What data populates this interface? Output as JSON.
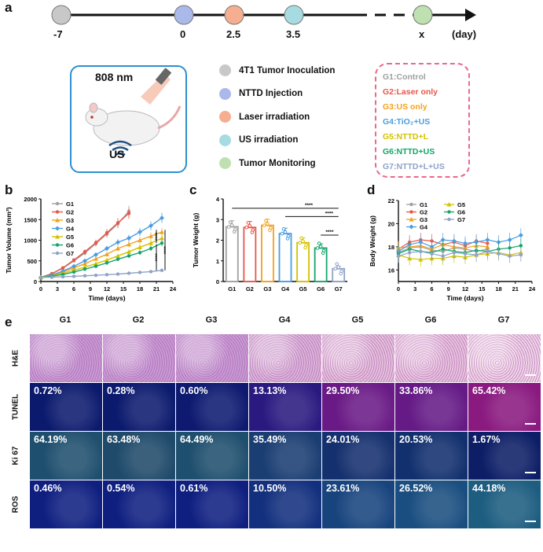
{
  "panel_labels": {
    "a": "a",
    "b": "b",
    "c": "c",
    "d": "d",
    "e": "e"
  },
  "timeline": {
    "points": [
      {
        "label": "-7",
        "color": "#c8c8c8"
      },
      {
        "label": "0",
        "color": "#aab8ea"
      },
      {
        "label": "2.5",
        "color": "#f5ae8f"
      },
      {
        "label": "3.5",
        "color": "#a6dbe2"
      },
      {
        "label": "x",
        "color": "#bfe0b0"
      }
    ],
    "unit": "(day)"
  },
  "schematic": {
    "laser": "808 nm",
    "us": "US"
  },
  "events": [
    {
      "label": "4T1 Tumor Inoculation",
      "color": "#c8c8c8"
    },
    {
      "label": "NTTD Injection",
      "color": "#aab8ea"
    },
    {
      "label": "Laser irradiation",
      "color": "#f5ae8f"
    },
    {
      "label": "US irradiation",
      "color": "#a6dbe2"
    },
    {
      "label": "Tumor Monitoring",
      "color": "#bfe0b0"
    }
  ],
  "groups": [
    {
      "label": "G1:Control",
      "color": "#a0a0a0"
    },
    {
      "label": "G2:Laser only",
      "color": "#e8564a"
    },
    {
      "label": "G3:US only",
      "color": "#f3a21f"
    },
    {
      "label": "G4:TiO₂+US",
      "color": "#4a9de0"
    },
    {
      "label": "G5:NTTD+L",
      "color": "#d4c200"
    },
    {
      "label": "G6:NTTD+US",
      "color": "#13a56b"
    },
    {
      "label": "G7:NTTD+L+US",
      "color": "#8fa3c8"
    }
  ],
  "chart_data": [
    {
      "type": "line",
      "panel": "b",
      "xlabel": "Time (days)",
      "ylabel": "Tumor Volume (mm³)",
      "xlim": [
        0,
        24
      ],
      "ylim": [
        0,
        2000
      ],
      "xticks": [
        "0",
        "3",
        "6",
        "9",
        "12",
        "15",
        "18",
        "21",
        "24"
      ],
      "yticks": [
        "0",
        "500",
        "1000",
        "1500",
        "2000"
      ],
      "significance": [
        "****",
        "****",
        "****"
      ],
      "series": [
        {
          "name": "G1",
          "color": "#a0a0a0",
          "x": [
            0,
            2,
            4,
            6,
            8,
            10,
            12,
            14,
            16
          ],
          "y": [
            100,
            190,
            320,
            500,
            690,
            920,
            1150,
            1400,
            1700
          ]
        },
        {
          "name": "G2",
          "color": "#e8564a",
          "x": [
            0,
            2,
            4,
            6,
            8,
            10,
            12,
            14,
            16
          ],
          "y": [
            100,
            190,
            330,
            520,
            720,
            940,
            1180,
            1420,
            1650
          ]
        },
        {
          "name": "G3",
          "color": "#f3a21f",
          "x": [
            0,
            2,
            4,
            6,
            8,
            10,
            12,
            14,
            16,
            18,
            20,
            22
          ],
          "y": [
            100,
            150,
            230,
            330,
            430,
            550,
            660,
            800,
            900,
            1000,
            1100,
            1200
          ]
        },
        {
          "name": "G4",
          "color": "#4a9de0",
          "x": [
            0,
            2,
            4,
            6,
            8,
            10,
            12,
            14,
            16,
            18,
            20,
            22
          ],
          "y": [
            100,
            160,
            250,
            370,
            500,
            650,
            800,
            950,
            1050,
            1200,
            1350,
            1540
          ]
        },
        {
          "name": "G5",
          "color": "#d4c200",
          "x": [
            0,
            2,
            4,
            6,
            8,
            10,
            12,
            14,
            16,
            18,
            20,
            22
          ],
          "y": [
            100,
            140,
            200,
            270,
            350,
            430,
            520,
            620,
            720,
            830,
            930,
            1050
          ]
        },
        {
          "name": "G6",
          "color": "#13a56b",
          "x": [
            0,
            2,
            4,
            6,
            8,
            10,
            12,
            14,
            16,
            18,
            20,
            22
          ],
          "y": [
            100,
            130,
            170,
            230,
            300,
            370,
            450,
            540,
            620,
            700,
            800,
            930
          ]
        },
        {
          "name": "G7",
          "color": "#8fa3c8",
          "x": [
            0,
            2,
            4,
            6,
            8,
            10,
            12,
            14,
            16,
            18,
            20,
            22
          ],
          "y": [
            100,
            105,
            115,
            125,
            140,
            150,
            165,
            180,
            200,
            220,
            240,
            270
          ]
        }
      ]
    },
    {
      "type": "bar",
      "panel": "c",
      "ylabel": "Tumor Weight (g)",
      "ylim": [
        0,
        4
      ],
      "yticks": [
        "0",
        "1",
        "2",
        "3",
        "4"
      ],
      "categories": [
        "G1",
        "G2",
        "G3",
        "G4",
        "G5",
        "G6",
        "G7"
      ],
      "values": [
        2.65,
        2.62,
        2.72,
        2.32,
        1.88,
        1.62,
        0.62
      ],
      "colors": [
        "#a0a0a0",
        "#e8564a",
        "#f3a21f",
        "#4a9de0",
        "#d4c200",
        "#13a56b",
        "#8fa3c8"
      ],
      "significance": [
        "****",
        "****",
        "****"
      ]
    },
    {
      "type": "line",
      "panel": "d",
      "xlabel": "Time (days)",
      "ylabel": "Body Weight (g)",
      "xlim": [
        0,
        24
      ],
      "ylim": [
        15,
        22
      ],
      "xticks": [
        "0",
        "3",
        "6",
        "9",
        "12",
        "15",
        "18",
        "21",
        "24"
      ],
      "yticks": [
        "16",
        "18",
        "20",
        "22"
      ],
      "series": [
        {
          "name": "G1",
          "color": "#a0a0a0",
          "x": [
            0,
            2,
            4,
            6,
            8,
            10,
            12,
            14,
            16
          ],
          "y": [
            17.5,
            17.9,
            18.0,
            17.7,
            17.6,
            17.9,
            17.8,
            17.6,
            17.8
          ]
        },
        {
          "name": "G2",
          "color": "#e8564a",
          "x": [
            0,
            2,
            4,
            6,
            8,
            10,
            12,
            14,
            16
          ],
          "y": [
            17.8,
            18.4,
            18.6,
            18.5,
            18.2,
            18.4,
            18.1,
            18.5,
            18.3
          ]
        },
        {
          "name": "G3",
          "color": "#f3a21f",
          "x": [
            0,
            2,
            4,
            6,
            8,
            10,
            12,
            14,
            16
          ],
          "y": [
            17.9,
            18.0,
            18.1,
            17.8,
            18.2,
            18.0,
            17.9,
            18.1,
            18.0
          ]
        },
        {
          "name": "G4",
          "color": "#4a9de0",
          "x": [
            0,
            2,
            4,
            6,
            8,
            10,
            12,
            14,
            16,
            18,
            20,
            22
          ],
          "y": [
            17.6,
            18.2,
            18.4,
            18.0,
            18.6,
            18.5,
            18.3,
            18.4,
            18.6,
            18.4,
            18.6,
            19.0
          ]
        },
        {
          "name": "G5",
          "color": "#d4c200",
          "x": [
            0,
            2,
            4,
            6,
            8,
            10,
            12,
            14,
            16,
            18,
            20,
            22
          ],
          "y": [
            17.3,
            17.0,
            16.9,
            17.0,
            17.0,
            17.2,
            17.1,
            17.3,
            17.4,
            17.5,
            17.3,
            17.5
          ]
        },
        {
          "name": "G6",
          "color": "#13a56b",
          "x": [
            0,
            2,
            4,
            6,
            8,
            10,
            12,
            14,
            16,
            18,
            20,
            22
          ],
          "y": [
            17.4,
            17.8,
            17.6,
            17.5,
            17.8,
            17.6,
            17.5,
            17.7,
            17.6,
            17.8,
            17.9,
            18.1
          ]
        },
        {
          "name": "G7",
          "color": "#8fa3c8",
          "x": [
            0,
            2,
            4,
            6,
            8,
            10,
            12,
            14,
            16,
            18,
            20,
            22
          ],
          "y": [
            17.2,
            17.5,
            17.6,
            17.4,
            17.2,
            17.5,
            17.4,
            17.3,
            17.6,
            17.4,
            17.2,
            17.3
          ]
        }
      ]
    }
  ],
  "histology": {
    "columns": [
      "G1",
      "G2",
      "G3",
      "G4",
      "G5",
      "G6",
      "G7"
    ],
    "rows": [
      {
        "label": "H&E",
        "values": [
          "",
          "",
          "",
          "",
          "",
          "",
          ""
        ],
        "colors": [
          "#c99ad3",
          "#c99ad3",
          "#c99ad3",
          "#dcb2d8",
          "#e6bfdc",
          "#e9c2de",
          "#f1d3e6"
        ]
      },
      {
        "label": "TUNEL",
        "values": [
          "0.72%",
          "0.28%",
          "0.60%",
          "13.13%",
          "29.50%",
          "33.86%",
          "65.42%"
        ],
        "colors": [
          "#0c1a6e",
          "#0c1a6e",
          "#0d1a70",
          "#2a1a80",
          "#6a1a86",
          "#651a86",
          "#8a1a80"
        ]
      },
      {
        "label": "Ki 67",
        "values": [
          "64.19%",
          "63.48%",
          "64.49%",
          "35.49%",
          "24.01%",
          "20.53%",
          "1.67%"
        ],
        "colors": [
          "#1f4f6e",
          "#1f4a6a",
          "#1f4f6e",
          "#1a3d72",
          "#15306e",
          "#12306e",
          "#0d1e66"
        ]
      },
      {
        "label": "ROS",
        "values": [
          "0.46%",
          "0.54%",
          "0.61%",
          "10.50%",
          "23.61%",
          "26.52%",
          "44.18%"
        ],
        "colors": [
          "#0f1f80",
          "#0f1f80",
          "#0f1f80",
          "#13307e",
          "#18447e",
          "#1a4e80",
          "#1d5d80"
        ]
      }
    ]
  }
}
